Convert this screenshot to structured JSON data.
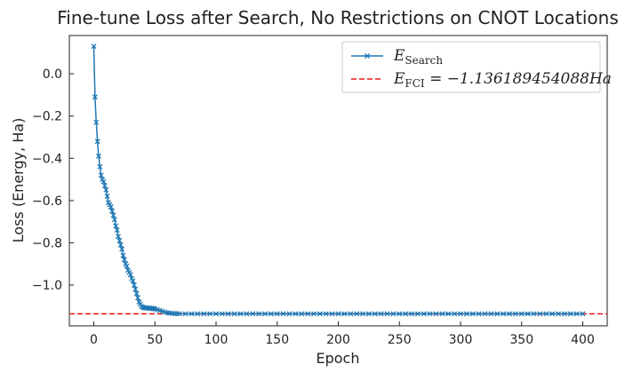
{
  "chart_data": {
    "type": "line",
    "title": "Fine-tune Loss after Search, No Restrictions on CNOT Locations",
    "x_label": "Epoch",
    "y_label": "Loss (Energy, Ha)",
    "xlim": [
      -20,
      420
    ],
    "ylim": [
      -1.193,
      0.181
    ],
    "xticks": [
      0,
      50,
      100,
      150,
      200,
      250,
      300,
      350,
      400
    ],
    "yticks": [
      {
        "value": -1.0,
        "label": "−1.0"
      },
      {
        "value": -0.8,
        "label": "−0.8"
      },
      {
        "value": -0.6,
        "label": "−0.6"
      },
      {
        "value": -0.4,
        "label": "−0.4"
      },
      {
        "value": -0.2,
        "label": "−0.2"
      },
      {
        "value": 0.0,
        "label": "0.0"
      }
    ],
    "legend": "upper right",
    "series": [
      {
        "name": "E_Search",
        "color": "#1f77b4",
        "marker": "x",
        "x": [
          0,
          1,
          2,
          3,
          4,
          5,
          6,
          7,
          8,
          9,
          10,
          11,
          12,
          13,
          14,
          15,
          16,
          17,
          18,
          19,
          20,
          21,
          22,
          23,
          24,
          25,
          26,
          27,
          28,
          29,
          30,
          31,
          32,
          33,
          34,
          35,
          36,
          37,
          38,
          39,
          40,
          41,
          42,
          43,
          44,
          45,
          46,
          47,
          48,
          49,
          50,
          52,
          54,
          56,
          58,
          60,
          62,
          64,
          66,
          68,
          70,
          75,
          80,
          85,
          90,
          95,
          100,
          105,
          110,
          115,
          120,
          125,
          130,
          135,
          140,
          145,
          150,
          155,
          160,
          165,
          170,
          175,
          180,
          185,
          190,
          195,
          200,
          205,
          210,
          215,
          220,
          225,
          230,
          235,
          240,
          245,
          250,
          255,
          260,
          265,
          270,
          275,
          280,
          285,
          290,
          295,
          300,
          305,
          310,
          315,
          320,
          325,
          330,
          335,
          340,
          345,
          350,
          355,
          360,
          365,
          370,
          375,
          380,
          385,
          390,
          395,
          400
        ],
        "values": [
          0.13,
          -0.11,
          -0.23,
          -0.32,
          -0.39,
          -0.44,
          -0.48,
          -0.5,
          -0.51,
          -0.53,
          -0.55,
          -0.58,
          -0.61,
          -0.62,
          -0.63,
          -0.65,
          -0.67,
          -0.69,
          -0.72,
          -0.74,
          -0.77,
          -0.79,
          -0.81,
          -0.83,
          -0.86,
          -0.88,
          -0.9,
          -0.91,
          -0.93,
          -0.94,
          -0.95,
          -0.97,
          -0.98,
          -1.0,
          -1.02,
          -1.04,
          -1.06,
          -1.08,
          -1.09,
          -1.1,
          -1.105,
          -1.107,
          -1.108,
          -1.108,
          -1.109,
          -1.109,
          -1.11,
          -1.11,
          -1.111,
          -1.112,
          -1.113,
          -1.116,
          -1.12,
          -1.124,
          -1.128,
          -1.131,
          -1.133,
          -1.134,
          -1.135,
          -1.135,
          -1.136,
          -1.136,
          -1.136,
          -1.136,
          -1.136,
          -1.136,
          -1.136,
          -1.136,
          -1.136,
          -1.136,
          -1.136,
          -1.136,
          -1.136,
          -1.136,
          -1.136,
          -1.136,
          -1.136,
          -1.136,
          -1.136,
          -1.136,
          -1.136,
          -1.136,
          -1.136,
          -1.136,
          -1.136,
          -1.136,
          -1.136,
          -1.136,
          -1.136,
          -1.136,
          -1.136,
          -1.136,
          -1.136,
          -1.136,
          -1.136,
          -1.136,
          -1.136,
          -1.136,
          -1.136,
          -1.136,
          -1.136,
          -1.136,
          -1.136,
          -1.136,
          -1.136,
          -1.136,
          -1.136,
          -1.136,
          -1.136,
          -1.136,
          -1.136,
          -1.136,
          -1.136,
          -1.136,
          -1.136,
          -1.136,
          -1.136,
          -1.136,
          -1.136,
          -1.136,
          -1.136,
          -1.136,
          -1.136,
          -1.136,
          -1.136,
          -1.136,
          -1.136
        ]
      }
    ],
    "reference_line": {
      "name": "E_FCI = −1.136189454088Ha",
      "value": -1.136189454088,
      "color": "#e41a1c"
    }
  }
}
